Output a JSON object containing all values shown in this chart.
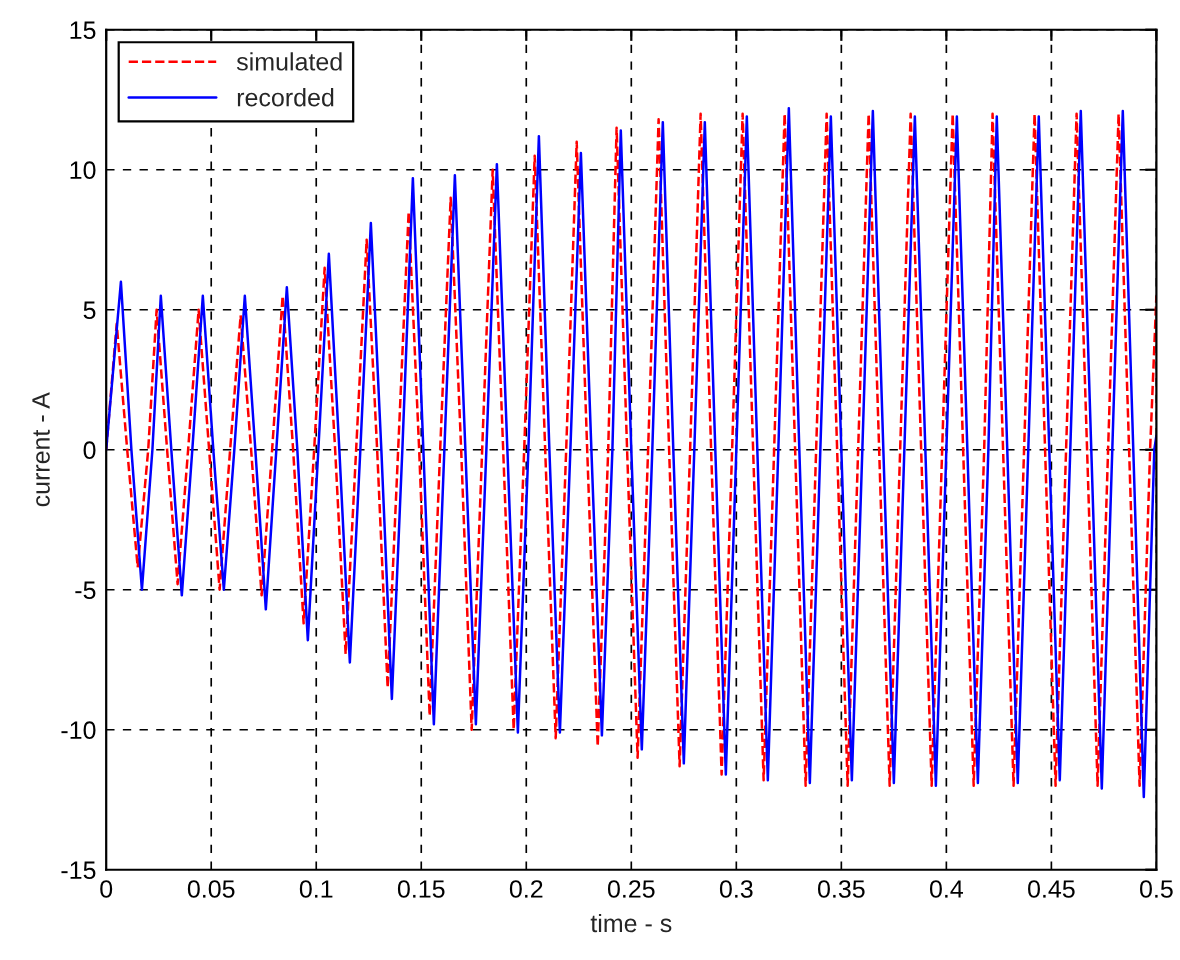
{
  "chart_data": {
    "type": "line",
    "xlabel": "time - s",
    "ylabel": "current - A",
    "xlim": [
      0,
      0.5
    ],
    "xticks": [
      0,
      0.05,
      0.1,
      0.15,
      0.2,
      0.25,
      0.3,
      0.35,
      0.4,
      0.45,
      0.5
    ],
    "ylim": [
      -15,
      15
    ],
    "yticks": [
      -15,
      -10,
      -5,
      0,
      5,
      10,
      15
    ],
    "grid": true,
    "legend": "top left",
    "marker": "none",
    "series": [
      {
        "name": "simulated",
        "color": "#ff0000",
        "line_style": "dashed",
        "x": [
          0,
          0.005,
          0.01,
          0.015,
          0.02,
          0.024,
          0.029,
          0.034,
          0.039,
          0.044,
          0.049,
          0.054,
          0.059,
          0.064,
          0.069,
          0.074,
          0.079,
          0.084,
          0.089,
          0.094,
          0.099,
          0.104,
          0.109,
          0.114,
          0.119,
          0.124,
          0.129,
          0.134,
          0.139,
          0.144,
          0.149,
          0.154,
          0.159,
          0.164,
          0.169,
          0.174,
          0.179,
          0.184,
          0.189,
          0.194,
          0.199,
          0.204,
          0.209,
          0.214,
          0.219,
          0.224,
          0.229,
          0.234,
          0.239,
          0.243,
          0.248,
          0.253,
          0.258,
          0.263,
          0.268,
          0.273,
          0.278,
          0.283,
          0.288,
          0.293,
          0.298,
          0.303,
          0.308,
          0.313,
          0.318,
          0.323,
          0.328,
          0.333,
          0.338,
          0.343,
          0.348,
          0.353,
          0.358,
          0.363,
          0.368,
          0.373,
          0.378,
          0.383,
          0.388,
          0.393,
          0.398,
          0.403,
          0.408,
          0.413,
          0.418,
          0.422,
          0.427,
          0.432,
          0.437,
          0.442,
          0.447,
          0.452,
          0.457,
          0.462,
          0.467,
          0.472,
          0.477,
          0.482,
          0.487,
          0.492,
          0.497,
          0.5
        ],
        "values": [
          0,
          4.5,
          0,
          -4.2,
          0,
          5,
          0,
          -4.8,
          0,
          5,
          0,
          -5,
          0,
          4.8,
          0,
          -5.2,
          0,
          5.5,
          0,
          -6.2,
          0,
          6.5,
          0,
          -7.3,
          0,
          7.5,
          0,
          -8.5,
          0,
          8.5,
          0,
          -9.5,
          0,
          9,
          0,
          -10,
          0,
          10,
          0,
          -10,
          0,
          10.5,
          0,
          -10.3,
          0,
          11,
          0,
          -10.6,
          0,
          11.5,
          0,
          -11,
          0,
          11.8,
          0,
          -11.3,
          0,
          12,
          0,
          -11.6,
          0,
          12,
          0,
          -11.8,
          0,
          12,
          0,
          -12,
          0,
          12,
          0,
          -12,
          0,
          12,
          0,
          -12,
          0,
          12,
          0,
          -12,
          0,
          12,
          0,
          -12,
          0,
          12,
          0,
          -12,
          0,
          12,
          0,
          -12,
          0,
          12,
          0,
          -12,
          0,
          12,
          0,
          -12,
          0,
          5.5
        ]
      },
      {
        "name": "recorded",
        "color": "#0000ff",
        "line_style": "solid",
        "x": [
          0,
          0.007,
          0.012,
          0.017,
          0.022,
          0.026,
          0.031,
          0.036,
          0.041,
          0.046,
          0.051,
          0.056,
          0.061,
          0.066,
          0.071,
          0.076,
          0.081,
          0.086,
          0.091,
          0.096,
          0.101,
          0.106,
          0.111,
          0.116,
          0.121,
          0.126,
          0.131,
          0.136,
          0.141,
          0.146,
          0.151,
          0.156,
          0.161,
          0.166,
          0.171,
          0.176,
          0.181,
          0.186,
          0.191,
          0.196,
          0.201,
          0.206,
          0.211,
          0.216,
          0.221,
          0.226,
          0.231,
          0.236,
          0.241,
          0.245,
          0.25,
          0.255,
          0.26,
          0.265,
          0.27,
          0.275,
          0.28,
          0.285,
          0.29,
          0.295,
          0.3,
          0.305,
          0.31,
          0.315,
          0.32,
          0.325,
          0.33,
          0.335,
          0.34,
          0.345,
          0.35,
          0.355,
          0.36,
          0.365,
          0.37,
          0.375,
          0.38,
          0.385,
          0.39,
          0.395,
          0.4,
          0.405,
          0.41,
          0.415,
          0.42,
          0.424,
          0.429,
          0.434,
          0.439,
          0.444,
          0.449,
          0.454,
          0.459,
          0.464,
          0.469,
          0.474,
          0.479,
          0.484,
          0.489,
          0.494,
          0.499,
          0.5
        ],
        "values": [
          0,
          6,
          0,
          -5,
          0,
          5.5,
          0,
          -5.2,
          0,
          5.5,
          0,
          -5,
          0,
          5.5,
          0,
          -5.7,
          0,
          5.8,
          0,
          -6.8,
          0,
          7,
          0,
          -7.6,
          0,
          8.1,
          0,
          -8.9,
          0,
          9.7,
          0,
          -9.8,
          0,
          9.8,
          0,
          -9.8,
          0,
          10.2,
          0,
          -10.1,
          0,
          11.2,
          0,
          -10.1,
          0,
          10.6,
          0,
          -10.2,
          0,
          11.4,
          0,
          -10.7,
          0,
          11.7,
          0,
          -11.2,
          0,
          11.7,
          0,
          -11.6,
          0,
          11.9,
          0,
          -11.8,
          0,
          12.2,
          0,
          -11.9,
          0,
          11.9,
          0,
          -11.8,
          0,
          12.1,
          0,
          -11.9,
          0,
          11.9,
          0,
          -12,
          0,
          11.9,
          0,
          -11.9,
          0,
          11.9,
          0,
          -11.9,
          0,
          11.9,
          0,
          -11.8,
          0,
          12.1,
          0,
          -12.1,
          0,
          12.1,
          0,
          -12.4,
          0,
          0.5
        ]
      }
    ]
  }
}
